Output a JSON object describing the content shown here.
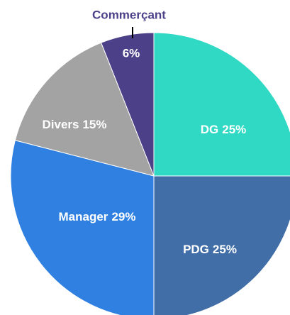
{
  "chart_data": {
    "type": "pie",
    "categories": [
      "DG",
      "PDG",
      "Manager",
      "Divers",
      "Commerçant"
    ],
    "values": [
      25,
      25,
      29,
      15,
      6
    ],
    "value_labels": [
      "25%",
      "25%",
      "29%",
      "15%",
      "6%"
    ],
    "colors": [
      "#2fd9c4",
      "#416ea6",
      "#2f80e1",
      "#a3a3a3",
      "#4c4189"
    ]
  }
}
